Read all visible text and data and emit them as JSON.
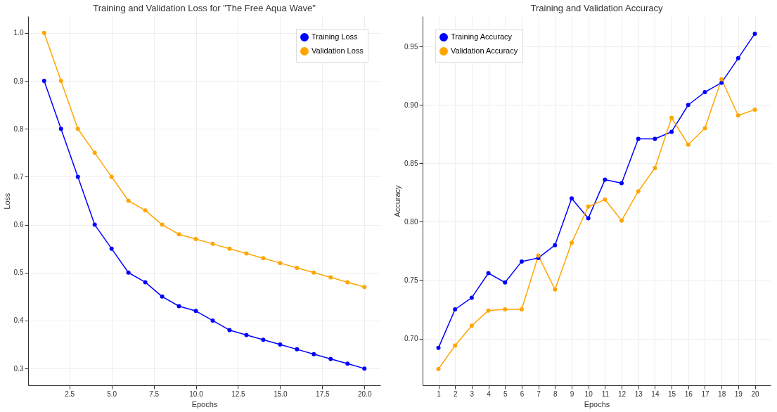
{
  "chart_data": [
    {
      "type": "line",
      "title": "Training and Validation Loss for \"The Free Aqua Wave\"",
      "xlabel": "Epochs",
      "ylabel": "Loss",
      "x": [
        1,
        2,
        3,
        4,
        5,
        6,
        7,
        8,
        9,
        10,
        11,
        12,
        13,
        14,
        15,
        16,
        17,
        18,
        19,
        20
      ],
      "series": [
        {
          "name": "Training Loss",
          "color": "#0000ff",
          "values": [
            0.9,
            0.8,
            0.7,
            0.6,
            0.55,
            0.5,
            0.48,
            0.45,
            0.43,
            0.42,
            0.4,
            0.38,
            0.37,
            0.36,
            0.35,
            0.34,
            0.33,
            0.32,
            0.31,
            0.3
          ]
        },
        {
          "name": "Validation Loss",
          "color": "#ffa500",
          "values": [
            1.0,
            0.9,
            0.8,
            0.75,
            0.7,
            0.65,
            0.63,
            0.6,
            0.58,
            0.57,
            0.56,
            0.55,
            0.54,
            0.53,
            0.52,
            0.51,
            0.5,
            0.49,
            0.48,
            0.47
          ]
        }
      ],
      "xlim": [
        0.05,
        20.95
      ],
      "xticks": [
        2.5,
        {
          "value": 5,
          "label": "5.0"
        },
        7.5,
        {
          "value": 10,
          "label": "10.0"
        },
        12.5,
        {
          "value": 15,
          "label": "15.0"
        },
        17.5,
        {
          "value": 20,
          "label": "20.0"
        }
      ],
      "ylim": [
        0.265,
        1.035
      ],
      "yticks": [
        0.3,
        0.4,
        0.5,
        0.6,
        0.7,
        0.8,
        0.9,
        {
          "value": 1,
          "label": "1.0"
        }
      ],
      "grid": true,
      "legend": "top right",
      "marker": "circle",
      "line_style": "solid"
    },
    {
      "type": "line",
      "title": "Training and Validation Accuracy",
      "xlabel": "Epochs",
      "ylabel": "Accuracy",
      "x": [
        1,
        2,
        3,
        4,
        5,
        6,
        7,
        8,
        9,
        10,
        11,
        12,
        13,
        14,
        15,
        16,
        17,
        18,
        19,
        20
      ],
      "series": [
        {
          "name": "Training Accuracy",
          "color": "#0000ff",
          "values": [
            0.692,
            0.725,
            0.735,
            0.756,
            0.748,
            0.766,
            0.769,
            0.78,
            0.82,
            0.803,
            0.836,
            0.833,
            0.871,
            0.871,
            0.877,
            0.9,
            0.911,
            0.919,
            0.94,
            0.961
          ]
        },
        {
          "name": "Validation Accuracy",
          "color": "#ffa500",
          "values": [
            0.674,
            0.694,
            0.711,
            0.724,
            0.725,
            0.725,
            0.771,
            0.742,
            0.782,
            0.813,
            0.819,
            0.801,
            0.826,
            0.846,
            0.889,
            0.866,
            0.88,
            0.922,
            0.891,
            0.896
          ]
        }
      ],
      "xlim": [
        0.05,
        20.95
      ],
      "xticks": [
        1,
        2,
        3,
        4,
        5,
        6,
        7,
        8,
        9,
        10,
        11,
        12,
        13,
        14,
        15,
        16,
        17,
        18,
        19,
        20
      ],
      "ylim": [
        0.66,
        0.976
      ],
      "yticks": [
        {
          "value": 0.7,
          "label": "0.70"
        },
        0.75,
        {
          "value": 0.8,
          "label": "0.80"
        },
        0.85,
        {
          "value": 0.9,
          "label": "0.90"
        },
        0.95
      ],
      "grid": true,
      "legend": "top left",
      "marker": "circle",
      "line_style": "solid"
    }
  ]
}
